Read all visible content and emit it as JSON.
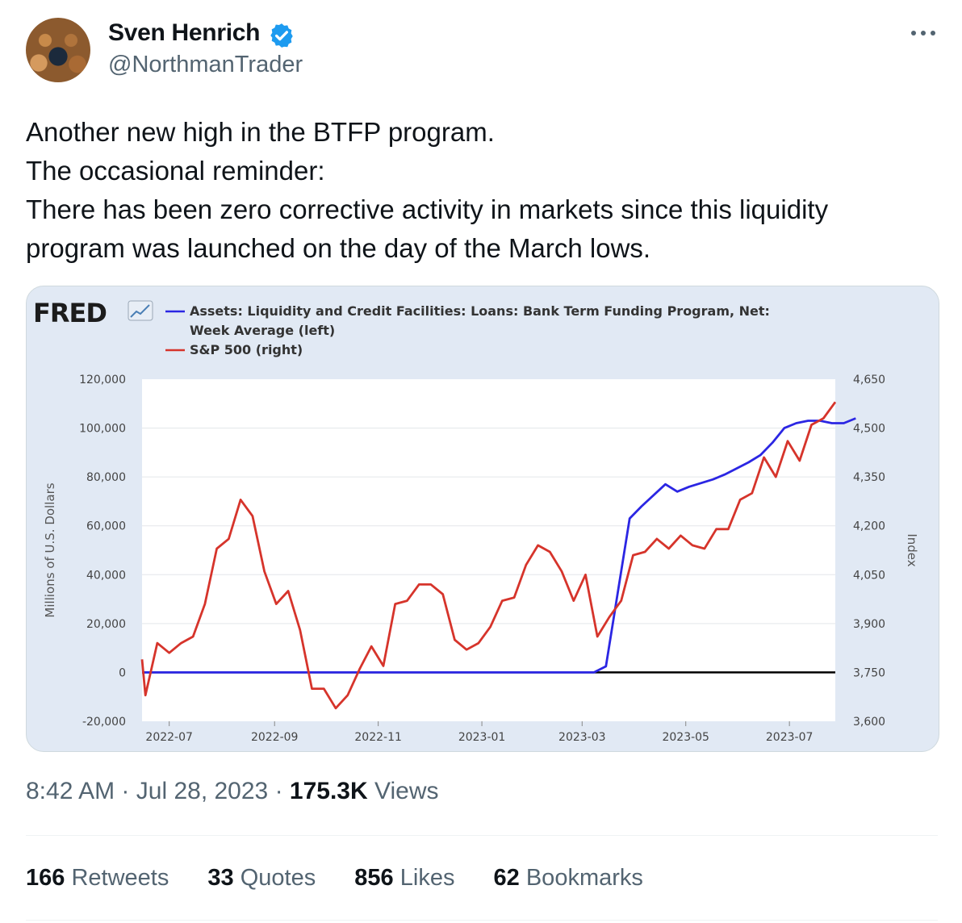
{
  "tweet": {
    "author_name": "Sven Henrich",
    "author_handle": "@NorthmanTrader",
    "text_lines": [
      "Another new high in the BTFP program.",
      "The occasional reminder:",
      "There has been zero corrective activity in markets since this liquidity",
      "program was launched on the day of the March lows."
    ],
    "time": "8:42 AM",
    "date": "Jul 28, 2023",
    "sep": "·",
    "views_count": "175.3K",
    "views_label": "Views",
    "stats": [
      {
        "count": "166",
        "label": "Retweets"
      },
      {
        "count": "33",
        "label": "Quotes"
      },
      {
        "count": "856",
        "label": "Likes"
      },
      {
        "count": "62",
        "label": "Bookmarks"
      }
    ],
    "verified_color": "#1d9bf0"
  },
  "chart_data": {
    "type": "line",
    "logo": "FRED",
    "legend": [
      {
        "lines": [
          "Assets: Liquidity and Credit Facilities: Loans: Bank Term Funding Program, Net:",
          "Week Average (left)"
        ],
        "color": "#2b26e3"
      },
      {
        "lines": [
          "S&P 500 (right)"
        ],
        "color": "#d6342b"
      }
    ],
    "ylabel_left": "Millions of U.S. Dollars",
    "ylabel_right": "Index",
    "y_left_ticks": [
      "120,000",
      "100,000",
      "80,000",
      "60,000",
      "40,000",
      "20,000",
      "0",
      "-20,000"
    ],
    "y_right_ticks": [
      "4,650",
      "4,500",
      "4,350",
      "4,200",
      "4,050",
      "3,900",
      "3,750",
      "3,600"
    ],
    "x_ticks": [
      "2022-07",
      "2022-09",
      "2022-11",
      "2023-01",
      "2023-03",
      "2023-05",
      "2023-07"
    ],
    "ylim_left": [
      -20000,
      120000
    ],
    "ylim_right": [
      3600,
      4650
    ],
    "x_range_months": [
      "2022-06-15",
      "2023-07-28"
    ],
    "series": [
      {
        "name": "Assets: Liquidity and Credit Facilities: Loans: Bank Term Funding Program, Net: Week Average (left)",
        "axis": "left",
        "color": "#2b26e3",
        "points": [
          [
            "2022-06-15",
            0
          ],
          [
            "2023-03-08",
            0
          ],
          [
            "2023-03-15",
            2500
          ],
          [
            "2023-03-29",
            63000
          ],
          [
            "2023-04-05",
            68000
          ],
          [
            "2023-04-19",
            77000
          ],
          [
            "2023-04-26",
            74000
          ],
          [
            "2023-05-03",
            76000
          ],
          [
            "2023-05-17",
            79000
          ],
          [
            "2023-05-24",
            81000
          ],
          [
            "2023-06-07",
            86000
          ],
          [
            "2023-06-14",
            89000
          ],
          [
            "2023-06-21",
            94000
          ],
          [
            "2023-06-28",
            100000
          ],
          [
            "2023-07-05",
            102000
          ],
          [
            "2023-07-12",
            103000
          ],
          [
            "2023-07-19",
            103000
          ],
          [
            "2023-07-26",
            102000
          ],
          [
            "2023-07-28",
            102000
          ],
          [
            "2023-08-02",
            102000
          ],
          [
            "2023-08-09",
            104000
          ]
        ]
      },
      {
        "name": "S&P 500 (right)",
        "axis": "right",
        "color": "#d6342b",
        "points": [
          [
            "2022-06-15",
            3790
          ],
          [
            "2022-06-17",
            3680
          ],
          [
            "2022-06-24",
            3840
          ],
          [
            "2022-07-01",
            3810
          ],
          [
            "2022-07-08",
            3840
          ],
          [
            "2022-07-15",
            3860
          ],
          [
            "2022-07-22",
            3960
          ],
          [
            "2022-07-29",
            4130
          ],
          [
            "2022-08-05",
            4160
          ],
          [
            "2022-08-12",
            4280
          ],
          [
            "2022-08-19",
            4230
          ],
          [
            "2022-08-26",
            4060
          ],
          [
            "2022-09-02",
            3960
          ],
          [
            "2022-09-09",
            4000
          ],
          [
            "2022-09-16",
            3880
          ],
          [
            "2022-09-23",
            3700
          ],
          [
            "2022-09-30",
            3700
          ],
          [
            "2022-10-07",
            3640
          ],
          [
            "2022-10-14",
            3680
          ],
          [
            "2022-10-21",
            3760
          ],
          [
            "2022-10-28",
            3830
          ],
          [
            "2022-11-04",
            3770
          ],
          [
            "2022-11-11",
            3960
          ],
          [
            "2022-11-18",
            3970
          ],
          [
            "2022-11-25",
            4020
          ],
          [
            "2022-12-02",
            4020
          ],
          [
            "2022-12-09",
            3990
          ],
          [
            "2022-12-16",
            3850
          ],
          [
            "2022-12-23",
            3820
          ],
          [
            "2022-12-30",
            3840
          ],
          [
            "2023-01-06",
            3890
          ],
          [
            "2023-01-13",
            3970
          ],
          [
            "2023-01-20",
            3980
          ],
          [
            "2023-01-27",
            4080
          ],
          [
            "2023-02-03",
            4140
          ],
          [
            "2023-02-10",
            4120
          ],
          [
            "2023-02-17",
            4060
          ],
          [
            "2023-02-24",
            3970
          ],
          [
            "2023-03-03",
            4050
          ],
          [
            "2023-03-10",
            3860
          ],
          [
            "2023-03-17",
            3920
          ],
          [
            "2023-03-24",
            3970
          ],
          [
            "2023-03-31",
            4110
          ],
          [
            "2023-04-07",
            4120
          ],
          [
            "2023-04-14",
            4160
          ],
          [
            "2023-04-21",
            4130
          ],
          [
            "2023-04-28",
            4170
          ],
          [
            "2023-05-05",
            4140
          ],
          [
            "2023-05-12",
            4130
          ],
          [
            "2023-05-19",
            4190
          ],
          [
            "2023-05-26",
            4190
          ],
          [
            "2023-06-02",
            4280
          ],
          [
            "2023-06-09",
            4300
          ],
          [
            "2023-06-16",
            4410
          ],
          [
            "2023-06-23",
            4350
          ],
          [
            "2023-06-30",
            4460
          ],
          [
            "2023-07-07",
            4400
          ],
          [
            "2023-07-14",
            4510
          ],
          [
            "2023-07-21",
            4530
          ],
          [
            "2023-07-28",
            4580
          ]
        ]
      }
    ]
  }
}
